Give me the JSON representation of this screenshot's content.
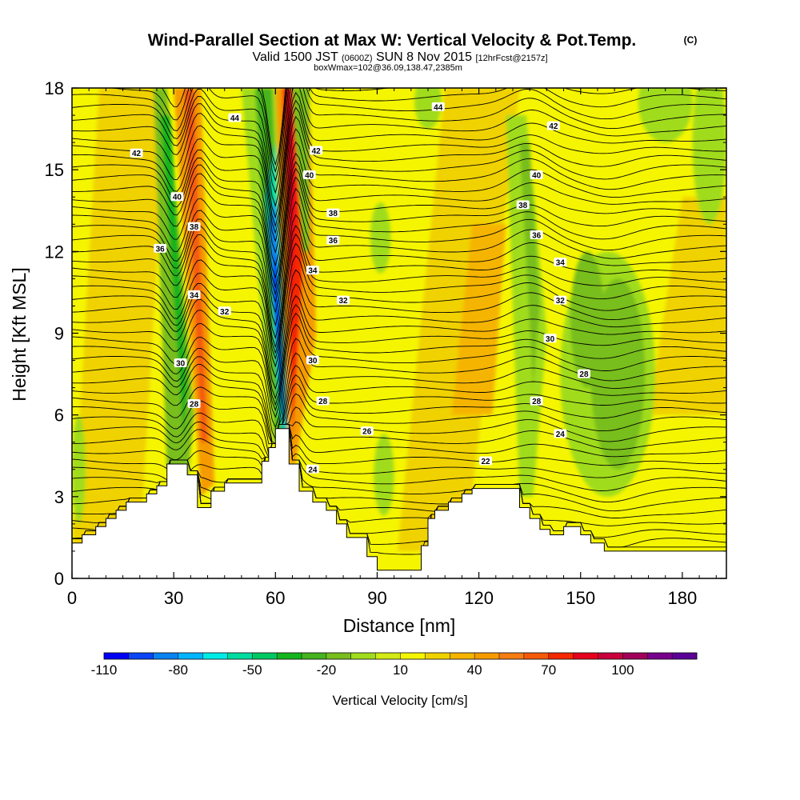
{
  "header": {
    "title": "Wind-Parallel Section at Max W: Vertical Velocity & Pot.Temp.",
    "copyright": "(C)",
    "valid_prefix": "Valid 1500 JST",
    "valid_utc": "(0600Z)",
    "valid_date": "SUN 8 Nov 2015",
    "forecast": "[12hrFcst@2157z]",
    "box_info": "boxWmax=102@36.09,138.47,2385m"
  },
  "chart_data": {
    "type": "heatmap",
    "title": "Wind-Parallel Section at Max W: Vertical Velocity & Pot.Temp.",
    "xlabel": "Distance [nm]",
    "ylabel": "Height [Kft MSL]",
    "xlim": [
      0,
      193
    ],
    "ylim": [
      0,
      18
    ],
    "x_ticks": [
      0,
      30,
      60,
      90,
      120,
      150,
      180
    ],
    "y_ticks": [
      0,
      3,
      6,
      9,
      12,
      15,
      18
    ],
    "terrain": {
      "x": [
        0,
        3,
        3,
        7,
        7,
        10,
        10,
        13,
        13,
        16,
        16,
        19,
        19,
        22,
        22,
        25,
        25,
        28,
        28,
        34,
        34,
        37,
        37,
        41,
        41,
        45,
        45,
        54,
        54,
        56,
        56,
        58,
        58,
        60,
        60,
        64,
        64,
        67,
        67,
        71,
        71,
        75,
        75,
        78,
        78,
        81,
        81,
        87,
        87,
        90,
        90,
        94,
        94,
        103,
        103,
        105,
        105,
        107,
        107,
        111,
        111,
        115,
        115,
        118,
        118,
        121,
        121,
        132,
        132,
        135,
        135,
        138,
        138,
        141,
        141,
        145,
        145,
        150,
        150,
        153,
        153,
        157,
        157,
        193
      ],
      "y": [
        1.3,
        1.3,
        1.6,
        1.6,
        1.9,
        1.9,
        2.2,
        2.2,
        2.5,
        2.5,
        2.8,
        2.8,
        2.8,
        2.8,
        3.1,
        3.1,
        3.4,
        3.4,
        4.2,
        4.2,
        3.8,
        3.8,
        2.6,
        2.6,
        3.2,
        3.2,
        3.5,
        3.5,
        3.5,
        3.5,
        4.3,
        4.3,
        4.8,
        4.8,
        5.5,
        5.5,
        4.2,
        4.2,
        3.2,
        3.2,
        2.8,
        2.8,
        2.5,
        2.5,
        2.0,
        2.0,
        1.5,
        1.5,
        0.8,
        0.8,
        0.3,
        0.3,
        0.3,
        0.3,
        1.2,
        1.2,
        2.2,
        2.2,
        2.5,
        2.5,
        2.8,
        2.8,
        3.1,
        3.1,
        3.3,
        3.3,
        3.3,
        3.3,
        2.6,
        2.6,
        2.2,
        2.2,
        1.8,
        1.8,
        1.6,
        1.6,
        1.9,
        1.9,
        1.6,
        1.6,
        1.3,
        1.3,
        1.0,
        1.0
      ]
    },
    "theta_labels": [
      {
        "text": "44",
        "x": 48,
        "y": 16.9
      },
      {
        "text": "44",
        "x": 108,
        "y": 17.3
      },
      {
        "text": "42",
        "x": 19,
        "y": 15.6
      },
      {
        "text": "42",
        "x": 72,
        "y": 15.7
      },
      {
        "text": "42",
        "x": 142,
        "y": 16.6
      },
      {
        "text": "40",
        "x": 31,
        "y": 14.0
      },
      {
        "text": "40",
        "x": 70,
        "y": 14.8
      },
      {
        "text": "40",
        "x": 137,
        "y": 14.8
      },
      {
        "text": "38",
        "x": 36,
        "y": 12.9
      },
      {
        "text": "38",
        "x": 77,
        "y": 13.4
      },
      {
        "text": "38",
        "x": 133,
        "y": 13.7
      },
      {
        "text": "36",
        "x": 26,
        "y": 12.1
      },
      {
        "text": "36",
        "x": 77,
        "y": 12.4
      },
      {
        "text": "36",
        "x": 137,
        "y": 12.6
      },
      {
        "text": "34",
        "x": 36,
        "y": 10.4
      },
      {
        "text": "34",
        "x": 71,
        "y": 11.3
      },
      {
        "text": "34",
        "x": 144,
        "y": 11.6
      },
      {
        "text": "32",
        "x": 45,
        "y": 9.8
      },
      {
        "text": "32",
        "x": 80,
        "y": 10.2
      },
      {
        "text": "32",
        "x": 144,
        "y": 10.2
      },
      {
        "text": "30",
        "x": 32,
        "y": 7.9
      },
      {
        "text": "30",
        "x": 71,
        "y": 8.0
      },
      {
        "text": "30",
        "x": 141,
        "y": 8.8
      },
      {
        "text": "28",
        "x": 36,
        "y": 6.4
      },
      {
        "text": "28",
        "x": 74,
        "y": 6.5
      },
      {
        "text": "28",
        "x": 137,
        "y": 6.5
      },
      {
        "text": "28",
        "x": 151,
        "y": 7.5
      },
      {
        "text": "26",
        "x": 87,
        "y": 5.4
      },
      {
        "text": "24",
        "x": 71,
        "y": 4.0
      },
      {
        "text": "24",
        "x": 144,
        "y": 5.3
      },
      {
        "text": "22",
        "x": 122,
        "y": 4.3
      }
    ],
    "colorbar": {
      "label": "Vertical Velocity [cm/s]",
      "tick_labels": [
        "-110",
        "-80",
        "-50",
        "-20",
        "10",
        "40",
        "70",
        "100"
      ],
      "colors": [
        "#0000f5",
        "#0a46f5",
        "#0a82f0",
        "#00b4ff",
        "#00ebe6",
        "#00dca0",
        "#00c864",
        "#14b41e",
        "#46b41e",
        "#78be1e",
        "#a0dc1e",
        "#d2eb14",
        "#f5f500",
        "#f0d200",
        "#f5b400",
        "#f59b00",
        "#f57d14",
        "#f55a0a",
        "#f52800",
        "#e6001e",
        "#c8003c",
        "#a0005a",
        "#78008c",
        "#5a0096"
      ]
    }
  }
}
